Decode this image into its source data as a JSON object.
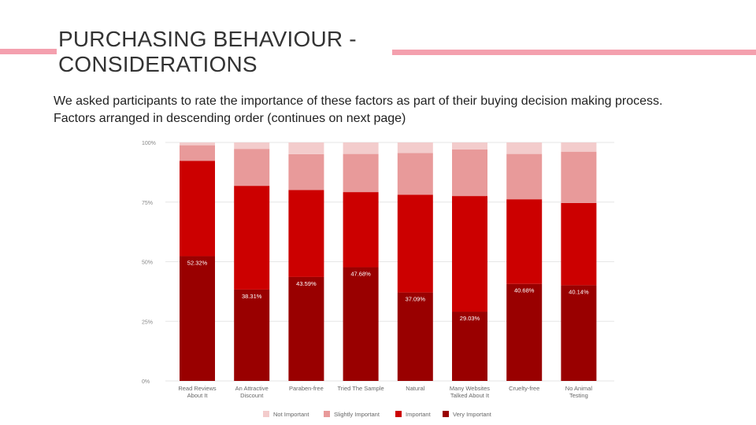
{
  "slide": {
    "title_line1": "PURCHASING BEHAVIOUR -",
    "title_line2": "CONSIDERATIONS",
    "subtitle_line1": "We asked participants to rate the importance of these factors as part of their buying decision making process.",
    "subtitle_line2": "Factors arranged in descending order (continues on next page)"
  },
  "colors": {
    "accent_line": "#f4a0ae",
    "not_important": "#f3cccc",
    "slightly_important": "#e89a9a",
    "important": "#cc0000",
    "very_important": "#990000"
  },
  "chart_data": {
    "type": "bar",
    "stacked": true,
    "categories": [
      [
        "Read Reviews",
        "About It"
      ],
      [
        "An Attractive",
        "Discount"
      ],
      [
        "Paraben-free"
      ],
      [
        "Tried The Sample"
      ],
      [
        "Natural"
      ],
      [
        "Many Websites",
        "Talked About It"
      ],
      [
        "Cruelty-free"
      ],
      [
        "No Animal",
        "Testing"
      ]
    ],
    "series": [
      {
        "name": "Very Important",
        "color": "#990000",
        "values": [
          52.32,
          38.31,
          43.59,
          47.68,
          37.09,
          29.03,
          40.68,
          40.14
        ]
      },
      {
        "name": "Important",
        "color": "#cc0000",
        "values": [
          40.0,
          43.5,
          36.5,
          31.5,
          41.0,
          48.5,
          35.5,
          34.5
        ]
      },
      {
        "name": "Slightly Important",
        "color": "#e89a9a",
        "values": [
          6.5,
          15.5,
          15.0,
          16.0,
          17.5,
          19.5,
          19.0,
          21.5
        ]
      },
      {
        "name": "Not Important",
        "color": "#f3cccc",
        "values": [
          1.18,
          2.69,
          4.91,
          4.82,
          4.41,
          2.97,
          4.82,
          3.86
        ]
      }
    ],
    "data_labels": [
      "52.32%",
      "38.31%",
      "43.59%",
      "47.68%",
      "37.09%",
      "29.03%",
      "40.68%",
      "40.14%"
    ],
    "yticks": [
      "0%",
      "25%",
      "50%",
      "75%",
      "100%"
    ],
    "ylim": [
      0,
      100
    ],
    "grid": true,
    "legend_position": "bottom",
    "legend": [
      "Not Important",
      "Slightly Important",
      "Important",
      "Very Important"
    ]
  }
}
